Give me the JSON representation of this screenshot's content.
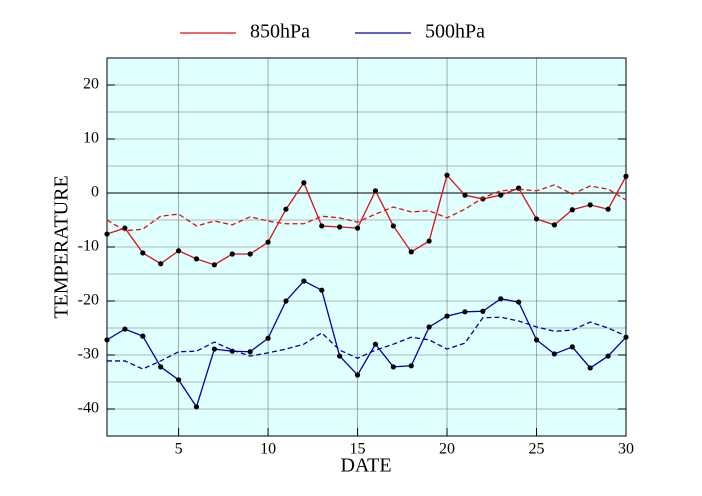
{
  "chart_data": {
    "type": "line",
    "xlabel": "DATE",
    "ylabel": "TEMPERATURE",
    "x": [
      1,
      2,
      3,
      4,
      5,
      6,
      7,
      8,
      9,
      10,
      11,
      12,
      13,
      14,
      15,
      16,
      17,
      18,
      19,
      20,
      21,
      22,
      23,
      24,
      25,
      26,
      27,
      28,
      29,
      30
    ],
    "xlim": [
      1,
      30
    ],
    "xticks": [
      5,
      10,
      15,
      20,
      25,
      30
    ],
    "xgrid": [
      5,
      10,
      15,
      20,
      25
    ],
    "ylim": [
      -45,
      25
    ],
    "yticks": [
      -40,
      -30,
      -20,
      -10,
      0,
      10,
      20
    ],
    "ygrid": [
      -40,
      -35,
      -30,
      -25,
      -20,
      -15,
      -10,
      -5,
      5,
      10,
      15,
      20
    ],
    "baseline": 0,
    "background": "#e0ffff",
    "marker_color": "#000000",
    "series": [
      {
        "name": "850hPa",
        "color": "#dd1111",
        "markers": true,
        "values": [
          -7.6,
          -6.5,
          -11.1,
          -13.1,
          -10.7,
          -12.2,
          -13.3,
          -11.3,
          -11.3,
          -9.1,
          -3.0,
          1.9,
          -6.1,
          -6.3,
          -6.5,
          0.4,
          -6.1,
          -10.9,
          -8.9,
          3.3,
          -0.4,
          -1.1,
          -0.4,
          0.9,
          -4.8,
          -5.9,
          -3.1,
          -2.2,
          -3.0,
          3.1
        ]
      },
      {
        "name": "500hPa",
        "color": "#0000aa",
        "markers": true,
        "values": [
          -27.2,
          -25.2,
          -26.5,
          -32.2,
          -34.6,
          -39.6,
          -28.9,
          -29.3,
          -29.4,
          -26.9,
          -20.0,
          -16.3,
          -18.0,
          -30.2,
          -33.7,
          -28.0,
          -32.2,
          -32.0,
          -24.8,
          -22.8,
          -22.0,
          -21.9,
          -19.6,
          -20.2,
          -27.2,
          -29.8,
          -28.5,
          -32.4,
          -30.2,
          -26.7
        ]
      },
      {
        "color": "#dd1111",
        "dashed": true,
        "values": [
          -5.0,
          -7.0,
          -6.7,
          -4.3,
          -3.9,
          -6.1,
          -5.2,
          -5.9,
          -4.4,
          -5.2,
          -5.7,
          -5.7,
          -4.3,
          -4.6,
          -5.4,
          -3.9,
          -2.6,
          -3.5,
          -3.3,
          -4.6,
          -3.0,
          -0.9,
          0.4,
          0.7,
          0.4,
          1.5,
          -0.2,
          1.3,
          0.7,
          -1.3
        ]
      },
      {
        "color": "#0000aa",
        "dashed": true,
        "values": [
          -31.1,
          -31.1,
          -32.6,
          -31.1,
          -29.4,
          -29.3,
          -27.6,
          -29.1,
          -30.2,
          -29.6,
          -28.9,
          -28.0,
          -25.9,
          -29.1,
          -30.6,
          -29.1,
          -28.0,
          -26.7,
          -27.2,
          -28.9,
          -27.8,
          -23.1,
          -23.0,
          -23.7,
          -24.8,
          -25.6,
          -25.4,
          -23.9,
          -25.0,
          -26.5
        ]
      }
    ]
  }
}
